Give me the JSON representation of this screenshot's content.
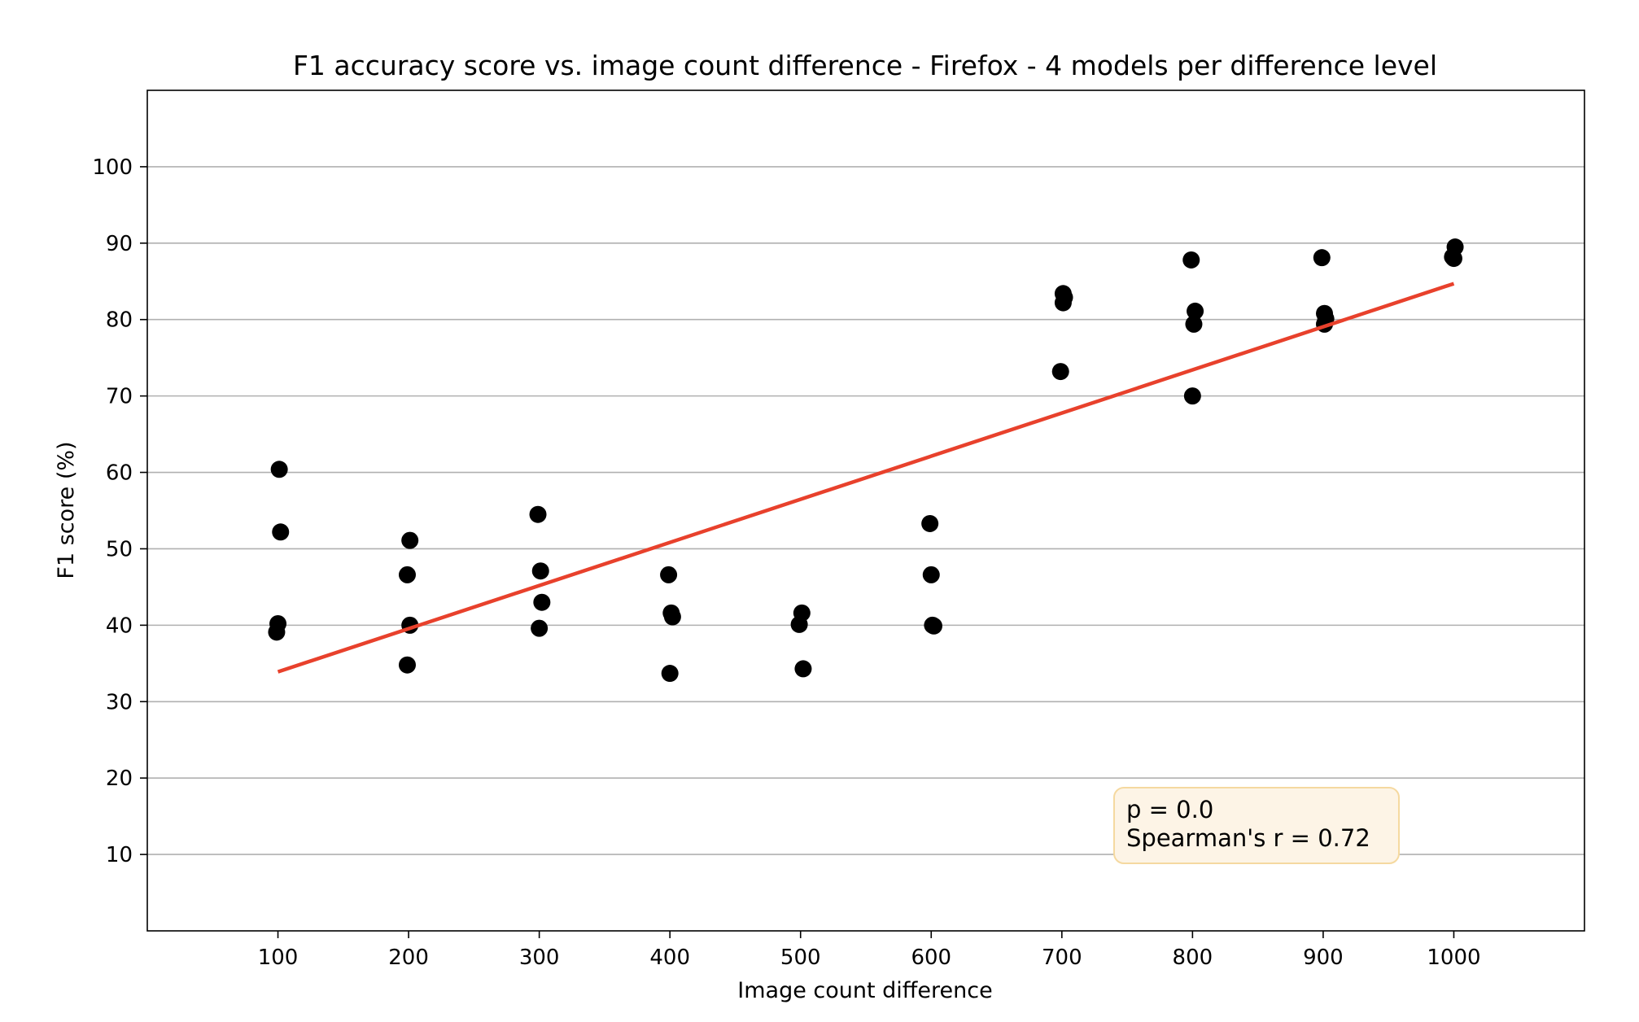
{
  "chart_data": {
    "type": "scatter",
    "title": "F1 accuracy score vs. image count difference - Firefox - 4 models per difference level",
    "xlabel": "Image count difference",
    "ylabel": "F1 score (%)",
    "xlim": [
      0,
      1100
    ],
    "ylim": [
      0,
      110
    ],
    "xticks": [
      100,
      200,
      300,
      400,
      500,
      600,
      700,
      800,
      900,
      1000
    ],
    "yticks": [
      10,
      20,
      30,
      40,
      50,
      60,
      70,
      80,
      90,
      100
    ],
    "grid": "horizontal",
    "point_color": "#000000",
    "trend_color": "#e8412c",
    "series": [
      {
        "points": [
          [
            101,
            60.4
          ],
          [
            102,
            52.2
          ],
          [
            100,
            40.2
          ],
          [
            99,
            39.1
          ],
          [
            201,
            51.1
          ],
          [
            199,
            46.6
          ],
          [
            201,
            40.0
          ],
          [
            199,
            34.8
          ],
          [
            299,
            54.5
          ],
          [
            301,
            47.1
          ],
          [
            302,
            43.0
          ],
          [
            300,
            39.6
          ],
          [
            399,
            46.6
          ],
          [
            401,
            41.6
          ],
          [
            402,
            41.1
          ],
          [
            400,
            33.7
          ],
          [
            501,
            41.6
          ],
          [
            499,
            40.1
          ],
          [
            502,
            34.3
          ],
          [
            599,
            53.3
          ],
          [
            600,
            46.6
          ],
          [
            601,
            40.0
          ],
          [
            602,
            39.9
          ],
          [
            701,
            83.4
          ],
          [
            702,
            82.9
          ],
          [
            701,
            82.2
          ],
          [
            699,
            73.2
          ],
          [
            799,
            87.8
          ],
          [
            802,
            81.1
          ],
          [
            801,
            79.4
          ],
          [
            800,
            70.0
          ],
          [
            899,
            88.1
          ],
          [
            901,
            80.8
          ],
          [
            902,
            80.1
          ],
          [
            901,
            79.4
          ],
          [
            1001,
            89.5
          ],
          [
            999,
            88.2
          ],
          [
            1000,
            88.0
          ]
        ]
      }
    ],
    "trendline": {
      "x": [
        100,
        1000
      ],
      "y": [
        33.9,
        84.7
      ]
    },
    "annotation": {
      "lines": [
        "p = 0.0",
        "Spearman's r = 0.72"
      ],
      "placement": "bottom-right",
      "background": "#fdf4e6",
      "border": "#f5d9a0"
    }
  }
}
